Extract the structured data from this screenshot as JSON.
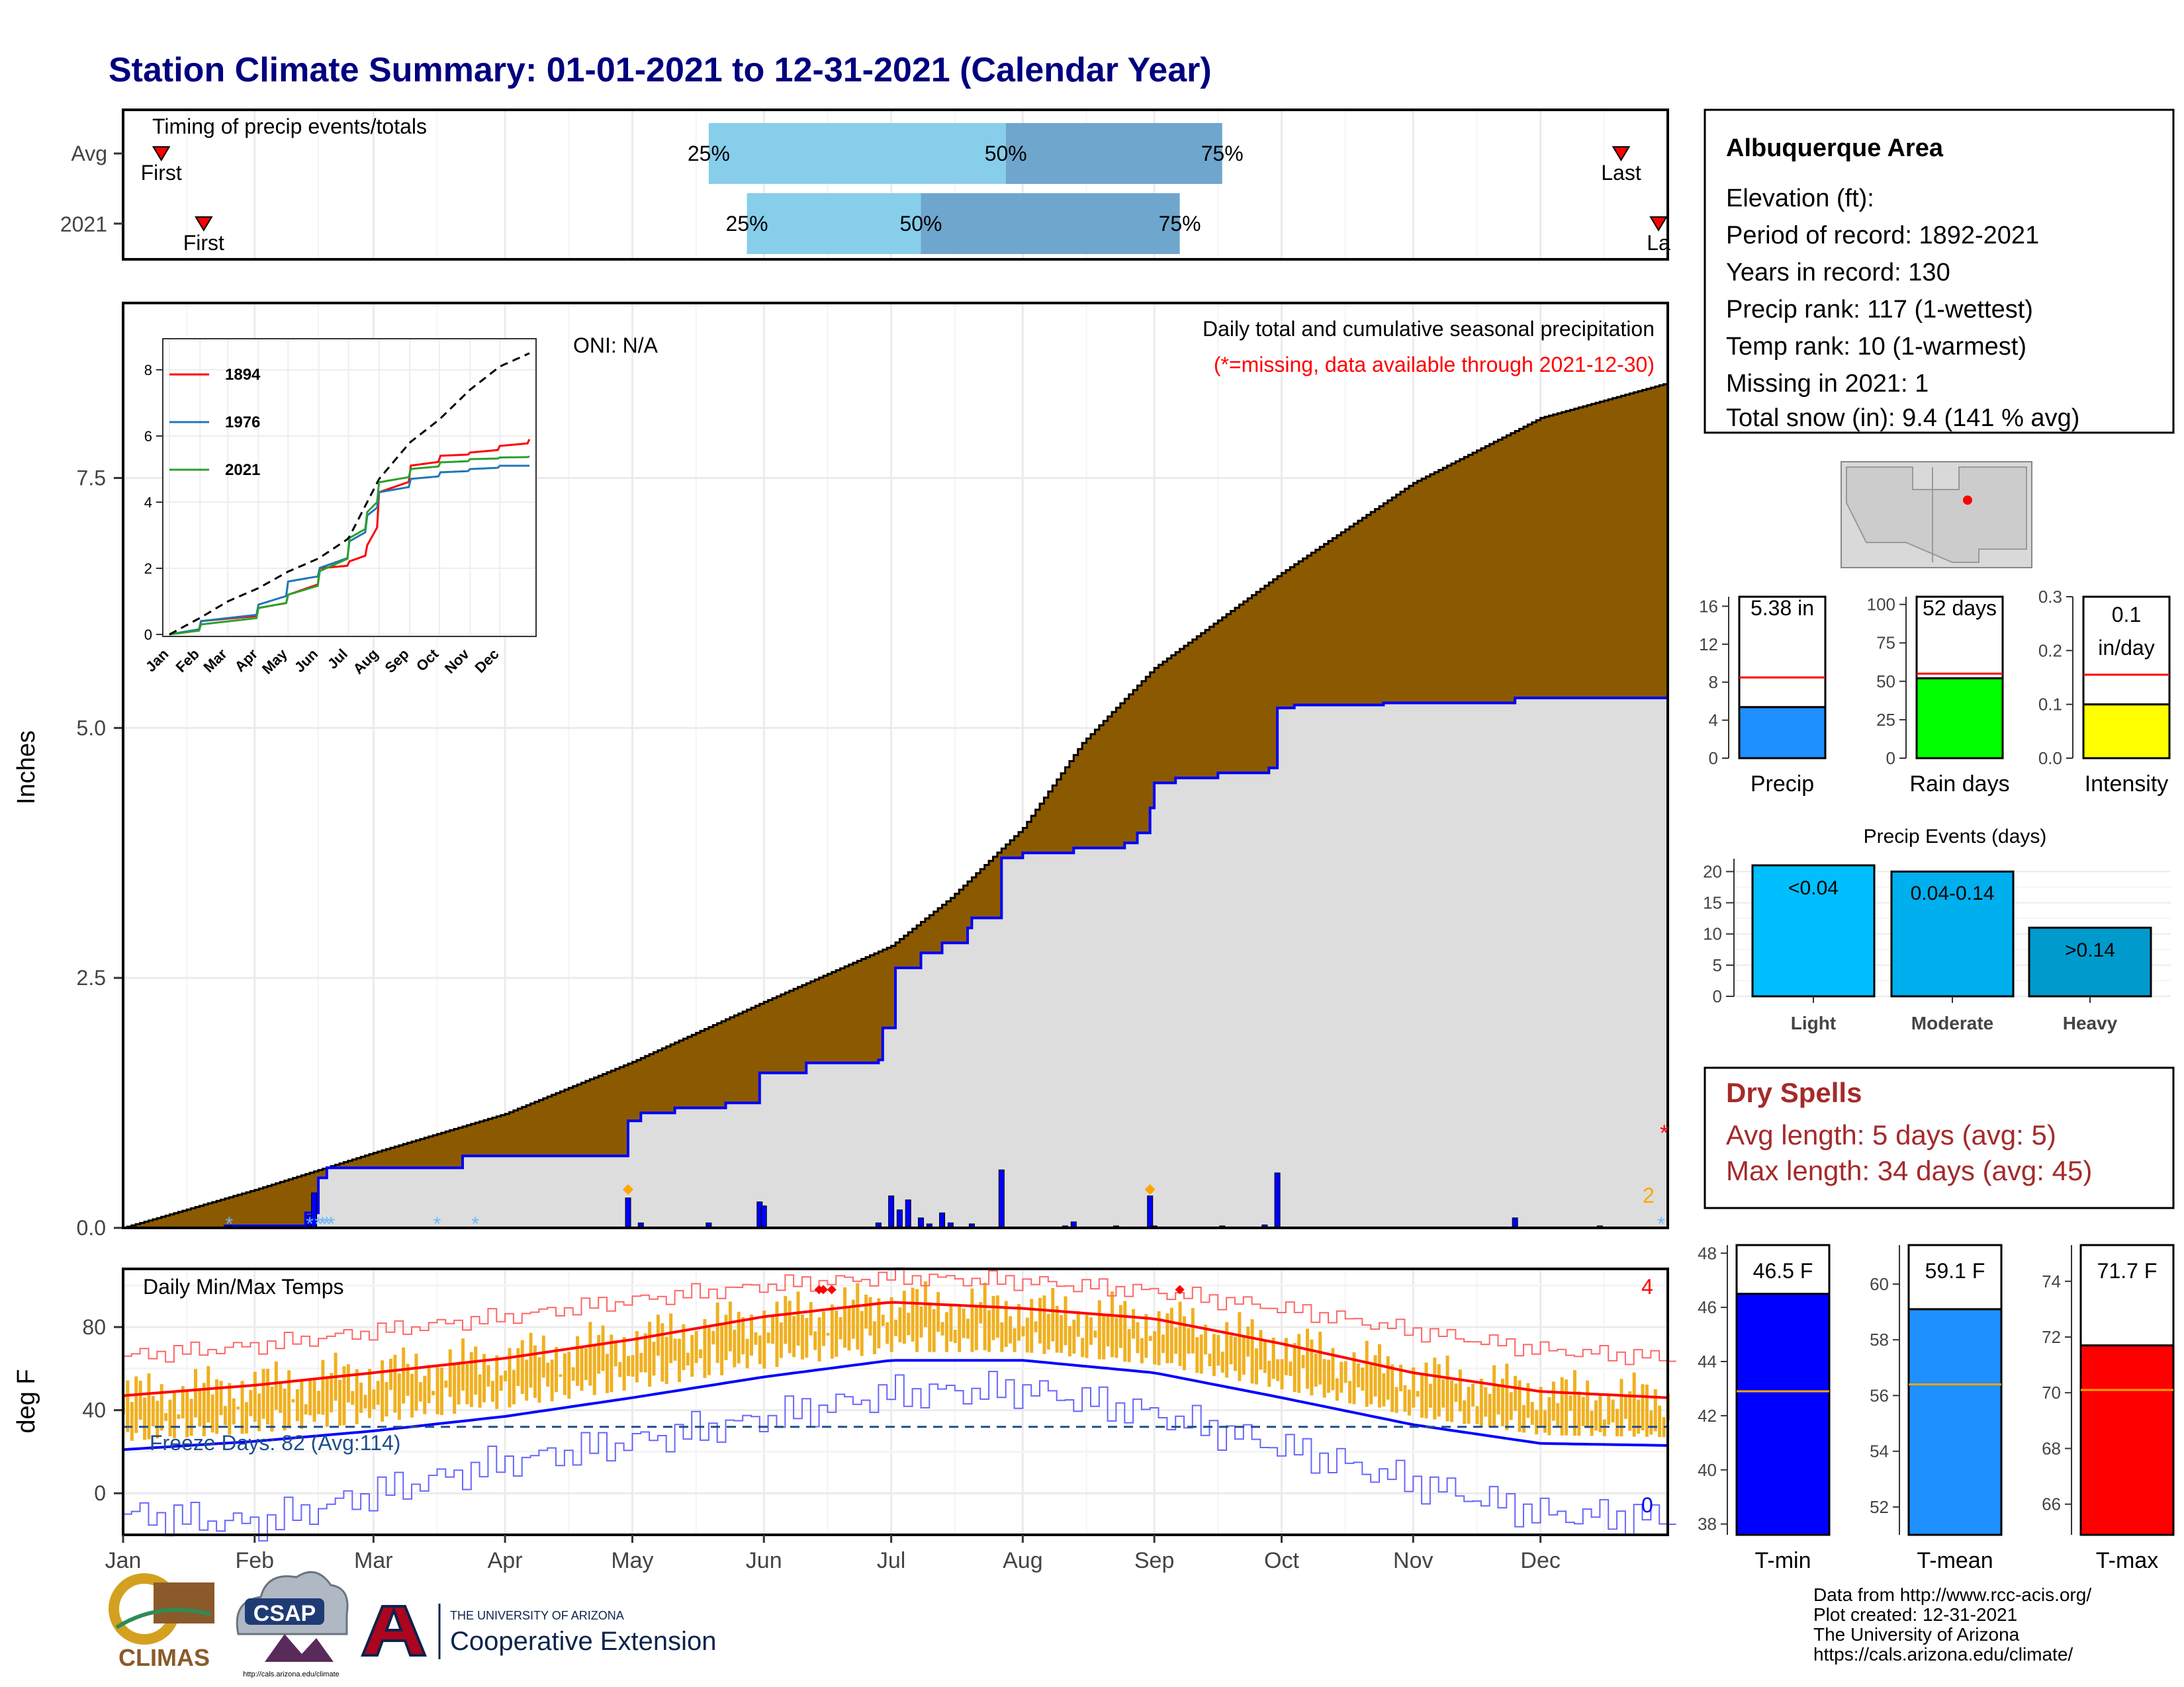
{
  "page_title": "Station Climate Summary: 01-01-2021 to 12-31-2021 (Calendar Year)",
  "timing": {
    "panel_label": "Timing of precip events/totals",
    "rows": [
      {
        "label": "Avg",
        "first": "First",
        "last": "Last",
        "p25": "25%",
        "p50": "50%",
        "p75": "75%"
      },
      {
        "label": "2021",
        "first": "First",
        "last": "La",
        "p25": "25%",
        "p50": "50%",
        "p75": "75%"
      }
    ]
  },
  "info_box": {
    "title": "Albuquerque Area",
    "lines": [
      "Elevation (ft):",
      "Period of record: 1892-2021",
      "Years in record: 130",
      "Precip rank: 117 (1-wettest)",
      "Temp rank: 10 (1-warmest)",
      "Missing in 2021: 1",
      "Total snow (in): 9.4 (141 % avg)"
    ]
  },
  "precip_panel": {
    "ylabel": "Inches",
    "oni": "ONI: N/A",
    "title": "Daily total and cumulative seasonal precipitation",
    "subtitle": "(*=missing, data available through 2021-12-30)",
    "missing_marker": "*",
    "right_count": "2",
    "yticks": [
      "0.0",
      "2.5",
      "5.0",
      "7.5"
    ]
  },
  "inset": {
    "legend": [
      "1894",
      "1976",
      "2021"
    ],
    "yticks": [
      "0",
      "2",
      "4",
      "6",
      "8"
    ],
    "xticks": [
      "Jan",
      "Feb",
      "Mar",
      "Apr",
      "May",
      "Jun",
      "Jul",
      "Aug",
      "Sep",
      "Oct",
      "Nov",
      "Dec"
    ]
  },
  "temp_panel": {
    "ylabel": "deg F",
    "title": "Daily Min/Max Temps",
    "freeze_label": "Freeze Days: 82 (Avg:114)",
    "top_count": "4",
    "bottom_count": "0",
    "yticks": [
      "0",
      "40",
      "80"
    ]
  },
  "months": [
    "Jan",
    "Feb",
    "Mar",
    "Apr",
    "May",
    "Jun",
    "Jul",
    "Aug",
    "Sep",
    "Oct",
    "Nov",
    "Dec"
  ],
  "mini_bars": [
    {
      "label": "Precip",
      "value_label": "5.38 in",
      "yticks": [
        "0",
        "4",
        "8",
        "12",
        "16"
      ]
    },
    {
      "label": "Rain days",
      "value_label": "52 days",
      "yticks": [
        "0",
        "25",
        "50",
        "75",
        "100"
      ]
    },
    {
      "label": "Intensity",
      "value_label_1": "0.1",
      "value_label_2": "in/day",
      "yticks": [
        "0.0",
        "0.1",
        "0.2",
        "0.3"
      ]
    }
  ],
  "events": {
    "title": "Precip Events (days)",
    "categories": [
      "Light",
      "Moderate",
      "Heavy"
    ],
    "labels": [
      "<0.04",
      "0.04-0.14",
      ">0.14"
    ],
    "yticks": [
      "0",
      "5",
      "10",
      "15",
      "20"
    ]
  },
  "dry_spells": {
    "title": "Dry Spells",
    "line1": "Avg length: 5 days (avg: 5)",
    "line2": "Max length: 34 days (avg: 45)"
  },
  "temp_bars": [
    {
      "label": "T-min",
      "value_label": "46.5 F",
      "yticks": [
        "38",
        "40",
        "42",
        "44",
        "46",
        "48"
      ]
    },
    {
      "label": "T-mean",
      "value_label": "59.1 F",
      "yticks": [
        "52",
        "54",
        "56",
        "58",
        "60"
      ]
    },
    {
      "label": "T-max",
      "value_label": "71.7 F",
      "yticks": [
        "66",
        "68",
        "70",
        "72",
        "74"
      ]
    }
  ],
  "footer": {
    "lines": [
      "Data from http://www.rcc-acis.org/",
      "Plot created: 12-31-2021",
      "The University of Arizona",
      "https://cals.arizona.edu/climate/"
    ]
  },
  "logos": {
    "climas": "CLIMAS",
    "csap": "CSAP",
    "csap_url": "http://cals.arizona.edu/climate",
    "ua_small": "THE UNIVERSITY OF ARIZONA",
    "ua_big": "Cooperative Extension"
  },
  "colors": {
    "title": "#00007f",
    "cumulative_avg": "#8b5a00",
    "cumulative_year": "#dddddd",
    "year_line": "#0000ff",
    "light_blue": "#87ceeb",
    "mid_blue": "#6fa6cd",
    "rain_green": "#00ff00",
    "intensity_yellow": "#ffff00",
    "precip_blue": "#1e90ff",
    "event_light": "#00bfff",
    "event_mod": "#00afed",
    "event_heavy": "#009acd",
    "temp_range": "#f0b020",
    "max_line": "#ff0000",
    "min_line": "#0000ff",
    "dry_spells": "#a52a2a"
  },
  "chart_data": [
    {
      "type": "bar",
      "name": "timing",
      "categories": [
        "Avg",
        "2021"
      ],
      "x_range": [
        "2021-01-01",
        "2021-12-31"
      ],
      "series": [
        {
          "name": "First",
          "values": [
            "2021-01-10",
            "2021-01-20"
          ]
        },
        {
          "name": "25%",
          "values": [
            "2021-05-19",
            "2021-05-28"
          ]
        },
        {
          "name": "50%",
          "values": [
            "2021-07-28",
            "2021-07-08"
          ]
        },
        {
          "name": "75%",
          "values": [
            "2021-09-17",
            "2021-09-07"
          ]
        },
        {
          "name": "Last",
          "values": [
            "2021-12-20",
            "2021-12-31"
          ]
        }
      ]
    },
    {
      "type": "area",
      "name": "cumulative precipitation",
      "x_unit": "date 2021",
      "ylim": [
        0,
        9.25
      ],
      "series": [
        {
          "name": "Avg",
          "dates": [
            "2021-01-01",
            "2021-02-01",
            "2021-03-01",
            "2021-04-01",
            "2021-05-01",
            "2021-06-01",
            "2021-07-01",
            "2021-07-15",
            "2021-08-01",
            "2021-08-15",
            "2021-09-01",
            "2021-10-01",
            "2021-11-01",
            "2021-12-01",
            "2021-12-31"
          ],
          "values": [
            0,
            0.38,
            0.75,
            1.14,
            1.66,
            2.26,
            2.82,
            3.3,
            4.0,
            4.85,
            5.6,
            6.55,
            7.45,
            8.1,
            8.45
          ]
        },
        {
          "name": "2021",
          "dates": [
            "2021-01-01",
            "2021-01-25",
            "2021-02-13",
            "2021-02-16",
            "2021-02-18",
            "2021-03-22",
            "2021-04-30",
            "2021-05-03",
            "2021-05-11",
            "2021-05-23",
            "2021-05-31",
            "2021-06-11",
            "2021-06-28",
            "2021-06-29",
            "2021-07-02",
            "2021-07-08",
            "2021-07-13",
            "2021-07-19",
            "2021-07-20",
            "2021-07-27",
            "2021-08-01",
            "2021-08-13",
            "2021-08-25",
            "2021-08-28",
            "2021-08-31",
            "2021-09-01",
            "2021-09-06",
            "2021-09-16",
            "2021-09-28",
            "2021-09-30",
            "2021-10-04",
            "2021-10-25",
            "2021-11-25",
            "2021-12-31"
          ],
          "values": [
            0,
            0.02,
            0.15,
            0.5,
            0.6,
            0.72,
            1.07,
            1.15,
            1.2,
            1.25,
            1.55,
            1.65,
            1.68,
            2.0,
            2.6,
            2.75,
            2.85,
            3.0,
            3.1,
            3.7,
            3.75,
            3.8,
            3.85,
            3.95,
            4.2,
            4.45,
            4.5,
            4.55,
            4.6,
            5.2,
            5.23,
            5.25,
            5.3,
            5.38
          ]
        }
      ]
    },
    {
      "type": "bar",
      "name": "daily precipitation (in)",
      "dates": [
        "2021-01-26",
        "2021-02-14",
        "2021-02-15",
        "2021-04-30",
        "2021-05-03",
        "2021-05-19",
        "2021-05-31",
        "2021-06-01",
        "2021-06-28",
        "2021-07-01",
        "2021-07-03",
        "2021-07-05",
        "2021-07-08",
        "2021-07-10",
        "2021-07-13",
        "2021-07-15",
        "2021-07-20",
        "2021-07-27",
        "2021-08-11",
        "2021-08-13",
        "2021-08-23",
        "2021-08-31",
        "2021-09-01",
        "2021-09-17",
        "2021-09-27",
        "2021-09-30",
        "2021-11-25",
        "2021-12-15"
      ],
      "values": [
        0.02,
        0.13,
        0.35,
        0.3,
        0.05,
        0.05,
        0.26,
        0.22,
        0.05,
        0.32,
        0.18,
        0.28,
        0.1,
        0.04,
        0.15,
        0.05,
        0.04,
        0.58,
        0.02,
        0.06,
        0.02,
        0.32,
        0.02,
        0.02,
        0.03,
        0.55,
        0.1,
        0.02
      ],
      "snow_days": [
        "2021-01-26",
        "2021-02-14",
        "2021-02-16",
        "2021-02-17",
        "2021-02-18",
        "2021-02-19",
        "2021-03-16",
        "2021-03-25",
        "2021-12-31"
      ]
    },
    {
      "type": "line",
      "name": "inset cumulative precipitation",
      "ylim": [
        0,
        8
      ],
      "series": [
        {
          "name": "1894",
          "dates": [
            "2021-01-01",
            "2021-02-01",
            "2021-04-01",
            "2021-05-01",
            "2021-06-01",
            "2021-07-01",
            "2021-07-20",
            "2021-08-01",
            "2021-09-01",
            "2021-10-01",
            "2021-11-01",
            "2021-12-01",
            "2021-12-31"
          ],
          "values": [
            0,
            0.4,
            0.8,
            1.2,
            2.0,
            2.2,
            2.7,
            4.3,
            5.1,
            5.4,
            5.5,
            5.7,
            5.9
          ]
        },
        {
          "name": "1976",
          "dates": [
            "2021-01-01",
            "2021-02-01",
            "2021-04-01",
            "2021-05-01",
            "2021-06-01",
            "2021-07-01",
            "2021-07-20",
            "2021-08-01",
            "2021-09-01",
            "2021-10-01",
            "2021-11-01",
            "2021-12-01",
            "2021-12-31"
          ],
          "values": [
            0,
            0.4,
            0.9,
            1.6,
            2.0,
            2.8,
            3.6,
            4.3,
            4.7,
            4.9,
            5.0,
            5.1,
            5.1
          ]
        },
        {
          "name": "2021",
          "dates": [
            "2021-01-01",
            "2021-02-01",
            "2021-04-01",
            "2021-05-01",
            "2021-06-01",
            "2021-07-01",
            "2021-07-20",
            "2021-08-01",
            "2021-09-01",
            "2021-10-01",
            "2021-11-01",
            "2021-12-01",
            "2021-12-31"
          ],
          "values": [
            0,
            0.3,
            0.8,
            1.2,
            1.9,
            2.9,
            3.7,
            4.6,
            5.0,
            5.2,
            5.3,
            5.35,
            5.38
          ]
        },
        {
          "name": "Avg",
          "dates": [
            "2021-01-01",
            "2021-02-01",
            "2021-03-01",
            "2021-04-01",
            "2021-05-01",
            "2021-06-01",
            "2021-07-01",
            "2021-08-01",
            "2021-09-01",
            "2021-10-01",
            "2021-11-01",
            "2021-12-01",
            "2021-12-31"
          ],
          "values": [
            0,
            0.5,
            1.0,
            1.4,
            1.9,
            2.3,
            2.9,
            4.7,
            5.8,
            6.5,
            7.4,
            8.1,
            8.5
          ]
        }
      ]
    },
    {
      "type": "line",
      "name": "daily temperatures (deg F)",
      "ylim": [
        -20,
        108
      ],
      "freeze_line": 32,
      "series": [
        {
          "name": "avg max",
          "dates": [
            "2021-01-01",
            "2021-02-01",
            "2021-03-01",
            "2021-04-01",
            "2021-05-01",
            "2021-06-01",
            "2021-07-01",
            "2021-08-01",
            "2021-09-01",
            "2021-10-01",
            "2021-11-01",
            "2021-12-01",
            "2021-12-31"
          ],
          "values": [
            47,
            52,
            58,
            65,
            74,
            85,
            92,
            89,
            84,
            72,
            58,
            49,
            46
          ]
        },
        {
          "name": "avg min",
          "dates": [
            "2021-01-01",
            "2021-02-01",
            "2021-03-01",
            "2021-04-01",
            "2021-05-01",
            "2021-06-01",
            "2021-07-01",
            "2021-08-01",
            "2021-09-01",
            "2021-10-01",
            "2021-11-01",
            "2021-12-01",
            "2021-12-31"
          ],
          "values": [
            21,
            25,
            30,
            37,
            46,
            56,
            64,
            64,
            58,
            46,
            33,
            24,
            23
          ]
        },
        {
          "name": "record max",
          "dates": [
            "2021-01-01",
            "2021-02-01",
            "2021-03-01",
            "2021-04-01",
            "2021-05-01",
            "2021-06-01",
            "2021-07-01",
            "2021-08-01",
            "2021-09-01",
            "2021-10-01",
            "2021-11-01",
            "2021-12-01",
            "2021-12-31"
          ],
          "values": [
            66,
            71,
            78,
            85,
            93,
            100,
            104,
            102,
            97,
            89,
            78,
            69,
            65
          ]
        },
        {
          "name": "record min",
          "dates": [
            "2021-01-01",
            "2021-02-01",
            "2021-03-01",
            "2021-04-01",
            "2021-05-01",
            "2021-06-01",
            "2021-07-01",
            "2021-08-01",
            "2021-09-01",
            "2021-10-01",
            "2021-11-01",
            "2021-12-01",
            "2021-12-31"
          ],
          "values": [
            -10,
            -15,
            0,
            15,
            25,
            36,
            48,
            50,
            38,
            22,
            5,
            -10,
            -12
          ]
        }
      ]
    },
    {
      "type": "bar",
      "name": "summary bars",
      "categories": [
        "Precip",
        "Rain days",
        "Intensity"
      ],
      "values": [
        5.38,
        52,
        0.1
      ],
      "averages": [
        8.5,
        55,
        0.155
      ],
      "ylims": [
        [
          0,
          17
        ],
        [
          0,
          105
        ],
        [
          0,
          0.3
        ]
      ]
    },
    {
      "type": "bar",
      "name": "Precip Events (days)",
      "categories": [
        "Light",
        "Moderate",
        "Heavy"
      ],
      "values": [
        21,
        20,
        11
      ],
      "ylim": [
        0,
        21
      ]
    },
    {
      "type": "bar",
      "name": "temperature summary",
      "categories": [
        "T-min",
        "T-mean",
        "T-max"
      ],
      "values": [
        46.5,
        59.1,
        71.7
      ],
      "averages": [
        42.9,
        56.4,
        70.1
      ],
      "ylims": [
        [
          37.6,
          48.3
        ],
        [
          51.0,
          61.4
        ],
        [
          64.9,
          75.3
        ]
      ]
    }
  ]
}
